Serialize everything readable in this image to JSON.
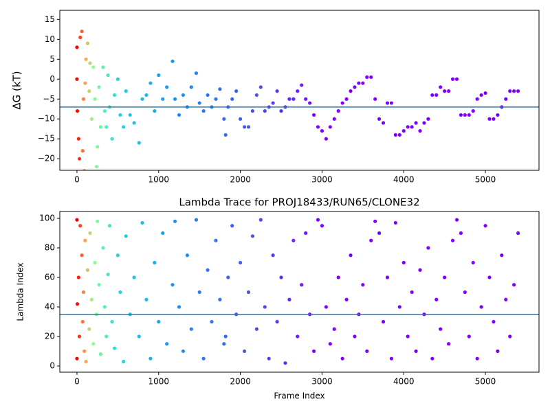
{
  "chart_data": [
    {
      "type": "scatter",
      "ylabel": "ΔG (kT)",
      "x": [
        0,
        0,
        5,
        20,
        30,
        40,
        60,
        70,
        80,
        90,
        100,
        110,
        130,
        150,
        160,
        180,
        200,
        220,
        240,
        250,
        270,
        290,
        320,
        340,
        360,
        380,
        400,
        430,
        460,
        500,
        530,
        570,
        600,
        650,
        700,
        760,
        800,
        850,
        900,
        950,
        1000,
        1050,
        1100,
        1170,
        1200,
        1250,
        1300,
        1350,
        1400,
        1460,
        1500,
        1550,
        1600,
        1650,
        1700,
        1750,
        1800,
        1820,
        1850,
        1900,
        1950,
        2000,
        2050,
        2100,
        2150,
        2200,
        2250,
        2300,
        2350,
        2400,
        2450,
        2500,
        2550,
        2600,
        2650,
        2700,
        2750,
        2800,
        2850,
        2900,
        2950,
        3000,
        3050,
        3100,
        3150,
        3200,
        3250,
        3300,
        3350,
        3400,
        3450,
        3500,
        3550,
        3600,
        3650,
        3700,
        3750,
        3800,
        3850,
        3900,
        3950,
        4000,
        4050,
        4100,
        4150,
        4200,
        4250,
        4300,
        4350,
        4400,
        4450,
        4500,
        4550,
        4600,
        4650,
        4700,
        4750,
        4800,
        4850,
        4900,
        4950,
        5000,
        5050,
        5100,
        5150,
        5200,
        5250,
        5300,
        5350,
        5400
      ],
      "series": [
        {
          "values": [
            8,
            0,
            -8,
            -15,
            -20,
            10.5,
            12,
            -18,
            -5,
            -23,
            -1,
            5,
            9,
            -3,
            4,
            -10,
            3,
            -5,
            -22,
            -17,
            -2,
            -12,
            3,
            -8,
            -12,
            1,
            -7,
            -15,
            -4,
            0,
            -9,
            -12,
            -3,
            -9,
            -11,
            -16,
            -5,
            -4,
            -1,
            -8,
            1,
            -5,
            -2,
            4.5,
            -5,
            -9,
            -4,
            -7,
            -2,
            1.5,
            -6,
            -8,
            -4,
            -7,
            -5,
            -2.5,
            -10,
            -14,
            -7,
            -5,
            -3,
            -10,
            -12,
            -12,
            -8,
            -4,
            -2,
            -8,
            -7,
            -6,
            -3,
            -8,
            -7,
            -5,
            -5,
            -3,
            -1.5,
            -5,
            -6,
            -9,
            -12,
            -13,
            -15,
            -12,
            -10,
            -8,
            -6,
            -5,
            -3,
            -2,
            -1,
            -1,
            0.5,
            0.5,
            -5,
            -10,
            -11,
            -6,
            -6,
            -14,
            -14,
            -13,
            -12,
            -12,
            -11,
            -13,
            -11,
            -10,
            -4,
            -4,
            -2,
            -3,
            -3,
            0,
            0,
            -9,
            -9,
            -9,
            -8,
            -5,
            -4,
            -3.5,
            -10,
            -10,
            -9,
            -7,
            -5,
            -3,
            -3,
            -3
          ]
        }
      ],
      "hline": -7,
      "hline_color": "#1f77b4",
      "color_stops": [
        {
          "x": 0,
          "color": "#ff0000"
        },
        {
          "x": 100,
          "color": "#ffa050"
        },
        {
          "x": 200,
          "color": "#90ff90"
        },
        {
          "x": 500,
          "color": "#20d8e0"
        },
        {
          "x": 1200,
          "color": "#2090f0"
        },
        {
          "x": 2200,
          "color": "#4a50f0"
        },
        {
          "x": 3000,
          "color": "#8000ff"
        }
      ],
      "xlim": [
        -210,
        5656
      ],
      "xticks": [
        0,
        1000,
        2000,
        3000,
        4000,
        5000
      ],
      "ylim": [
        -22.9,
        17.3
      ],
      "yticks": [
        {
          "value": -20,
          "label": "−20"
        },
        {
          "value": -15,
          "label": "−15"
        },
        {
          "value": -10,
          "label": "−10"
        },
        {
          "value": -5,
          "label": "−5"
        },
        0,
        5,
        10,
        15
      ]
    },
    {
      "type": "scatter",
      "title": "Lambda Trace for PROJ18433/RUN65/CLONE32",
      "xlabel": "Frame Index",
      "ylabel": "Lambda Index",
      "x": [
        0,
        0,
        5,
        20,
        30,
        40,
        60,
        70,
        80,
        90,
        100,
        110,
        130,
        150,
        160,
        180,
        200,
        220,
        240,
        250,
        270,
        290,
        320,
        340,
        360,
        380,
        400,
        430,
        460,
        500,
        530,
        570,
        600,
        650,
        700,
        760,
        800,
        850,
        900,
        950,
        1000,
        1050,
        1100,
        1170,
        1200,
        1250,
        1300,
        1350,
        1400,
        1460,
        1500,
        1550,
        1600,
        1650,
        1700,
        1750,
        1800,
        1820,
        1850,
        1900,
        1950,
        2000,
        2050,
        2100,
        2150,
        2200,
        2250,
        2300,
        2350,
        2400,
        2450,
        2500,
        2550,
        2600,
        2650,
        2700,
        2750,
        2800,
        2850,
        2900,
        2950,
        3000,
        3050,
        3100,
        3150,
        3200,
        3250,
        3300,
        3350,
        3400,
        3450,
        3500,
        3550,
        3600,
        3650,
        3700,
        3750,
        3800,
        3850,
        3900,
        3950,
        4000,
        4050,
        4100,
        4150,
        4200,
        4250,
        4300,
        4350,
        4400,
        4450,
        4500,
        4550,
        4600,
        4650,
        4700,
        4750,
        4800,
        4850,
        4900,
        4950,
        5000,
        5050,
        5100,
        5150,
        5200,
        5250,
        5300,
        5350,
        5400
      ],
      "series": [
        {
          "values": [
            99,
            5,
            42,
            60,
            20,
            95,
            75,
            30,
            50,
            10,
            85,
            3,
            65,
            25,
            90,
            45,
            15,
            70,
            35,
            98,
            55,
            8,
            80,
            40,
            20,
            62,
            95,
            30,
            12,
            75,
            50,
            3,
            88,
            35,
            60,
            20,
            97,
            45,
            5,
            70,
            30,
            90,
            15,
            55,
            98,
            40,
            10,
            75,
            25,
            99,
            50,
            5,
            65,
            30,
            85,
            45,
            15,
            20,
            60,
            95,
            35,
            70,
            10,
            50,
            88,
            25,
            99,
            40,
            5,
            75,
            30,
            60,
            2,
            45,
            85,
            20,
            55,
            90,
            35,
            10,
            99,
            95,
            40,
            15,
            25,
            60,
            5,
            45,
            75,
            20,
            35,
            55,
            10,
            85,
            98,
            90,
            30,
            60,
            5,
            97,
            40,
            70,
            20,
            50,
            10,
            65,
            35,
            80,
            5,
            45,
            25,
            60,
            15,
            85,
            99,
            90,
            50,
            20,
            70,
            5,
            40,
            95,
            60,
            30,
            10,
            75,
            45,
            20,
            55,
            90
          ]
        }
      ],
      "hline": 35,
      "hline_color": "#1f77b4",
      "color_stops": [
        {
          "x": 0,
          "color": "#ff0000"
        },
        {
          "x": 100,
          "color": "#ffa050"
        },
        {
          "x": 200,
          "color": "#90ff90"
        },
        {
          "x": 500,
          "color": "#20d8e0"
        },
        {
          "x": 1200,
          "color": "#2090f0"
        },
        {
          "x": 2200,
          "color": "#4a50f0"
        },
        {
          "x": 3000,
          "color": "#8000ff"
        }
      ],
      "xlim": [
        -210,
        5656
      ],
      "xticks": [
        0,
        1000,
        2000,
        3000,
        4000,
        5000
      ],
      "ylim": [
        -4.2,
        104.65
      ],
      "yticks": [
        0,
        20,
        40,
        60,
        80,
        100
      ]
    }
  ]
}
